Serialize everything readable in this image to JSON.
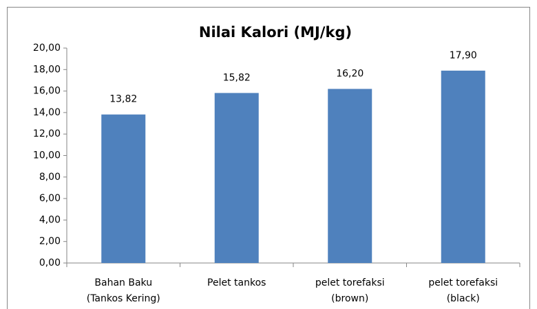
{
  "chart_data": {
    "type": "bar",
    "title": "Nilai Kalori (MJ/kg)",
    "categories": [
      "Bahan Baku (Tankos Kering)",
      "Pelet tankos",
      "pelet torefaksi (brown)",
      "pelet torefaksi (black)"
    ],
    "values": [
      13.82,
      15.82,
      16.2,
      17.9
    ],
    "value_labels": [
      "13,82",
      "15,82",
      "16,20",
      "17,90"
    ],
    "color": "#4f81bd",
    "ylim": [
      0,
      20
    ],
    "yticks": [
      {
        "value": 0,
        "label": "0,00"
      },
      {
        "value": 2,
        "label": "2,00"
      },
      {
        "value": 4,
        "label": "4,00"
      },
      {
        "value": 6,
        "label": "6,00"
      },
      {
        "value": 8,
        "label": "8,00"
      },
      {
        "value": 10,
        "label": "10,00"
      },
      {
        "value": 12,
        "label": "12,00"
      },
      {
        "value": 14,
        "label": "14,00"
      },
      {
        "value": 16,
        "label": "16,00"
      },
      {
        "value": 18,
        "label": "18,00"
      },
      {
        "value": 20,
        "label": "20,00"
      }
    ],
    "grid": false
  }
}
